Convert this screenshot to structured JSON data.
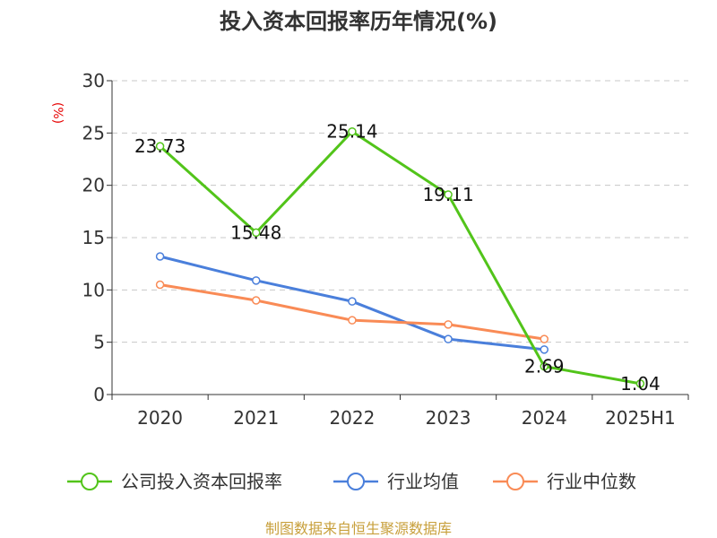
{
  "chart_data": {
    "type": "line",
    "title": "投入资本回报率历年情况(%)",
    "ylabel": "(%)",
    "ylim": [
      0,
      30
    ],
    "yticks": [
      0,
      5,
      10,
      15,
      20,
      25,
      30
    ],
    "categories": [
      "2020",
      "2021",
      "2022",
      "2023",
      "2024",
      "2025H1"
    ],
    "grid": true,
    "legend_position": "bottom",
    "series": [
      {
        "name": "公司投入资本回报率",
        "color": "#52c41a",
        "values": [
          23.73,
          15.48,
          25.14,
          19.11,
          2.69,
          1.04
        ],
        "labels": [
          "23.73",
          "15.48",
          "25.14",
          "19.11",
          "2.69",
          "1.04"
        ]
      },
      {
        "name": "行业均值",
        "color": "#4a7fdb",
        "values": [
          13.2,
          10.9,
          8.9,
          5.3,
          4.3,
          null
        ]
      },
      {
        "name": "行业中位数",
        "color": "#f98b56",
        "values": [
          10.5,
          9.0,
          7.1,
          6.7,
          5.3,
          null
        ]
      }
    ]
  },
  "source": "制图数据来自恒生聚源数据库"
}
